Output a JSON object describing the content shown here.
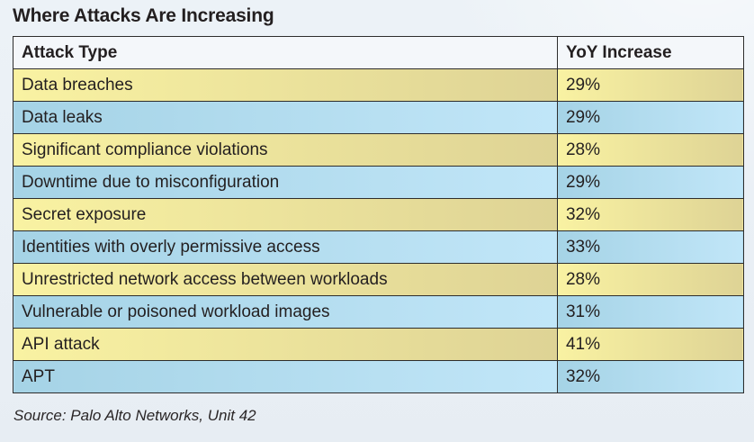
{
  "chart_data": {
    "type": "table",
    "title": "Where Attacks Are Increasing",
    "columns": [
      "Attack Type",
      "YoY Increase"
    ],
    "rows": [
      [
        "Data breaches",
        "29%"
      ],
      [
        "Data leaks",
        "29%"
      ],
      [
        "Significant compliance violations",
        "28%"
      ],
      [
        "Downtime due to misconfiguration",
        "29%"
      ],
      [
        "Secret exposure",
        "32%"
      ],
      [
        "Identities with overly permissive access",
        "33%"
      ],
      [
        "Unrestricted network access between workloads",
        "28%"
      ],
      [
        "Vulnerable or poisoned workload images",
        "31%"
      ],
      [
        "API attack",
        "41%"
      ],
      [
        "APT",
        "32%"
      ]
    ],
    "source": "Source: Palo Alto Networks, Unit 42",
    "layout_hints": {
      "row_striping": "alternating yellow/blue horizontal gradients",
      "grid": "on"
    }
  },
  "colors": {
    "page_bg": "#e9eff5",
    "text": "#231f20",
    "border": "#2d2d2d",
    "header_bg": "#f4f7fa",
    "yellow_row_left": "#f9f2a2",
    "yellow_row_right": "#ded395",
    "blue_row_left": "#a5d3e6",
    "blue_row_right": "#c1e6f8"
  }
}
